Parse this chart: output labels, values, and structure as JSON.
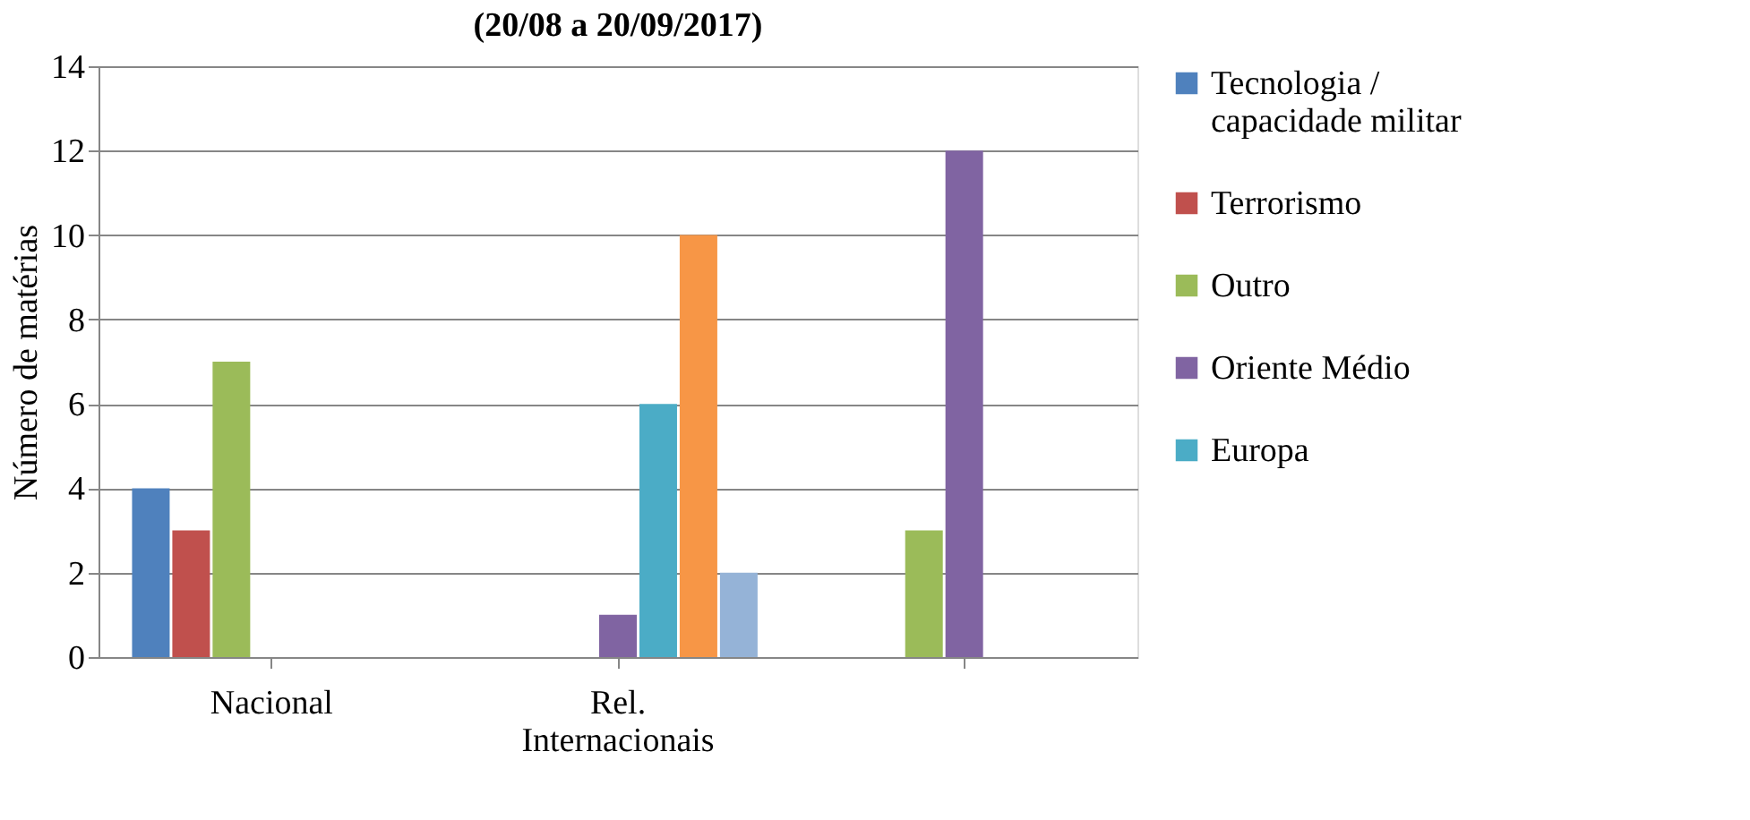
{
  "chart_data": {
    "type": "bar",
    "title": "(20/08 a 20/09/2017)",
    "ylabel": "Número de matérias",
    "categories": [
      "Nacional",
      "Rel. Internacionais",
      null
    ],
    "series": [
      {
        "name": "Tecnologia / capacidade militar",
        "color": "#4f81bd",
        "values": [
          4,
          null,
          null
        ]
      },
      {
        "name": "Terrorismo",
        "color": "#c0504d",
        "values": [
          3,
          null,
          null
        ]
      },
      {
        "name": "Outro",
        "color": "#9bbb59",
        "values": [
          7,
          null,
          3
        ]
      },
      {
        "name": "Oriente Médio",
        "color": "#8064a2",
        "values": [
          null,
          1,
          12
        ]
      },
      {
        "name": "Europa",
        "color": "#4bacc6",
        "values": [
          null,
          6,
          null
        ]
      },
      {
        "color": "#f79646",
        "values": [
          null,
          10,
          null
        ]
      },
      {
        "color": "#95b3d7",
        "values": [
          null,
          2,
          null
        ]
      }
    ],
    "ylim": [
      0,
      14
    ],
    "yticks": [
      0,
      2,
      4,
      6,
      8,
      10,
      12,
      14
    ],
    "grid": "y",
    "legend": "right"
  }
}
